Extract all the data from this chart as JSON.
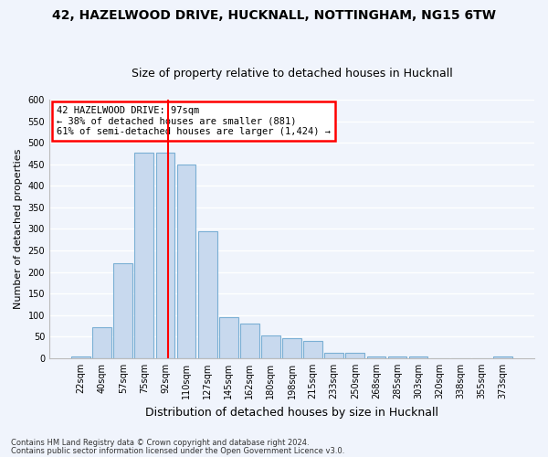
{
  "title1": "42, HAZELWOOD DRIVE, HUCKNALL, NOTTINGHAM, NG15 6TW",
  "title2": "Size of property relative to detached houses in Hucknall",
  "xlabel": "Distribution of detached houses by size in Hucknall",
  "ylabel": "Number of detached properties",
  "categories": [
    "22sqm",
    "40sqm",
    "57sqm",
    "75sqm",
    "92sqm",
    "110sqm",
    "127sqm",
    "145sqm",
    "162sqm",
    "180sqm",
    "198sqm",
    "215sqm",
    "233sqm",
    "250sqm",
    "268sqm",
    "285sqm",
    "303sqm",
    "320sqm",
    "338sqm",
    "355sqm",
    "373sqm"
  ],
  "values": [
    5,
    72,
    220,
    476,
    478,
    450,
    295,
    95,
    80,
    53,
    47,
    41,
    13,
    12,
    5,
    5,
    5,
    0,
    0,
    0,
    5
  ],
  "bar_color": "#c8d9ee",
  "bar_edge_color": "#7aafd4",
  "annotation_text": "42 HAZELWOOD DRIVE: 97sqm\n← 38% of detached houses are smaller (881)\n61% of semi-detached houses are larger (1,424) →",
  "vline_color": "red",
  "vline_bin_index": 4,
  "footer1": "Contains HM Land Registry data © Crown copyright and database right 2024.",
  "footer2": "Contains public sector information licensed under the Open Government Licence v3.0.",
  "ylim": [
    0,
    600
  ],
  "yticks": [
    0,
    50,
    100,
    150,
    200,
    250,
    300,
    350,
    400,
    450,
    500,
    550,
    600
  ],
  "bg_color": "#f0f4fc",
  "grid_color": "#ffffff",
  "title1_fontsize": 10,
  "title2_fontsize": 9,
  "axis_label_fontsize": 8,
  "tick_fontsize": 7
}
